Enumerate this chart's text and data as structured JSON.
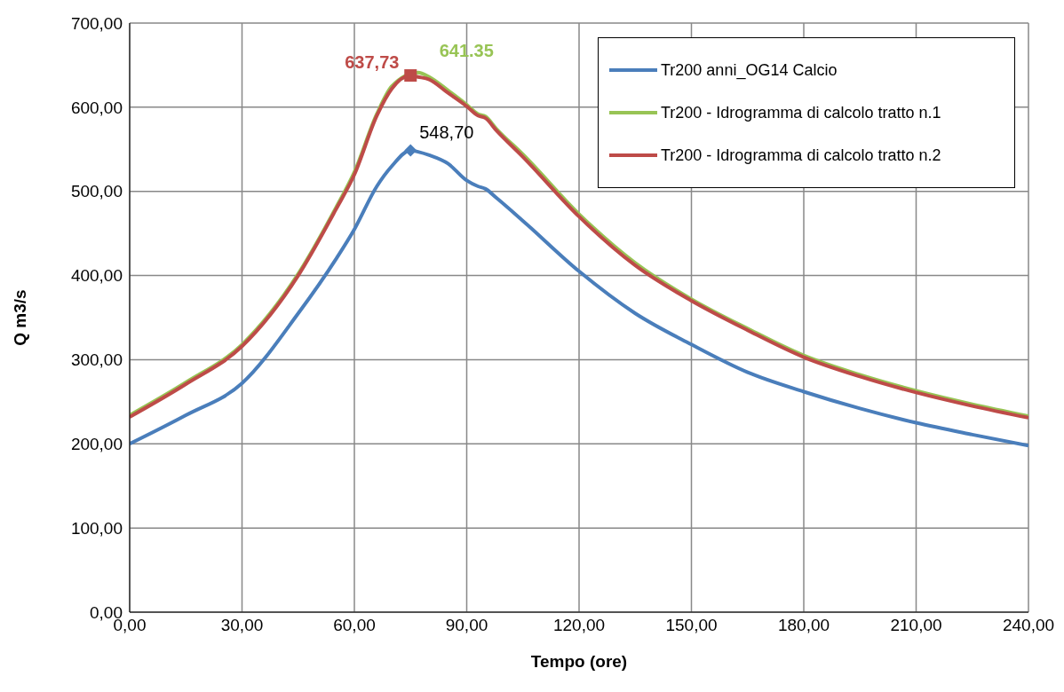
{
  "chart_data": {
    "type": "line",
    "xlabel": "Tempo (ore)",
    "ylabel": "Q m3/s",
    "x": [
      0,
      15,
      30,
      45,
      55,
      60,
      66,
      70,
      75,
      77,
      80,
      85,
      90,
      93,
      95,
      98,
      105,
      120,
      135,
      150,
      165,
      180,
      195,
      210,
      225,
      240
    ],
    "series": [
      {
        "name": "Tr200 anni_OG14 Calcio",
        "color": "#4a7ebb",
        "values": [
          200,
          234,
          272,
          355,
          419,
          455,
          506,
          530,
          548.7,
          547,
          543,
          533,
          513,
          506,
          503,
          492,
          465,
          405,
          355,
          318,
          285,
          262,
          242,
          225,
          211,
          198
        ],
        "value_labels": [
          null,
          null,
          null,
          null,
          null,
          null,
          null,
          null,
          "548,70",
          null,
          null,
          null,
          null,
          null,
          null,
          null,
          null,
          null,
          null,
          null,
          null,
          null,
          null,
          null,
          null,
          null
        ]
      },
      {
        "name": "Tr200 - Idrogramma di calcolo tratto n.1",
        "color": "#98c455",
        "values": [
          234,
          273,
          318,
          402,
          480,
          523,
          592,
          625,
          null,
          641.35,
          636,
          620,
          603,
          592,
          589,
          574,
          544,
          473,
          415,
          372,
          337,
          305,
          282,
          263,
          247,
          233
        ],
        "value_labels": [
          null,
          null,
          null,
          null,
          null,
          null,
          null,
          null,
          null,
          "641.35",
          null,
          null,
          null,
          null,
          null,
          null,
          null,
          null,
          null,
          null,
          null,
          null,
          null,
          null,
          null,
          null
        ]
      },
      {
        "name": "Tr200 - Idrogramma di calcolo tratto n.2",
        "color": "#be4b48",
        "values": [
          232,
          271,
          316,
          400,
          478,
          520,
          590,
          622,
          637.73,
          636,
          633,
          617,
          601,
          590,
          587,
          572,
          541,
          470,
          412,
          370,
          335,
          303,
          280,
          261,
          245,
          231
        ],
        "value_labels": [
          null,
          null,
          null,
          null,
          null,
          null,
          null,
          null,
          "637,73",
          null,
          null,
          null,
          null,
          null,
          null,
          null,
          null,
          null,
          null,
          null,
          null,
          null,
          null,
          null,
          null,
          null
        ]
      }
    ],
    "xlim": [
      0,
      240
    ],
    "xticks": [
      {
        "value": 0,
        "label": "0,00"
      },
      {
        "value": 30,
        "label": "30,00"
      },
      {
        "value": 60,
        "label": "60,00"
      },
      {
        "value": 90,
        "label": "90,00"
      },
      {
        "value": 120,
        "label": "120,00"
      },
      {
        "value": 150,
        "label": "150,00"
      },
      {
        "value": 180,
        "label": "180,00"
      },
      {
        "value": 210,
        "label": "210,00"
      },
      {
        "value": 240,
        "label": "240,00"
      }
    ],
    "ylim": [
      0,
      700
    ],
    "yticks": [
      {
        "value": 0,
        "label": "0,00"
      },
      {
        "value": 100,
        "label": "100,00"
      },
      {
        "value": 200,
        "label": "200,00"
      },
      {
        "value": 300,
        "label": "300,00"
      },
      {
        "value": 400,
        "label": "400,00"
      },
      {
        "value": 500,
        "label": "500,00"
      },
      {
        "value": 600,
        "label": "600,00"
      },
      {
        "value": 700,
        "label": "700,00"
      }
    ],
    "grid": true,
    "legend": "top right",
    "line_style": "solid"
  }
}
